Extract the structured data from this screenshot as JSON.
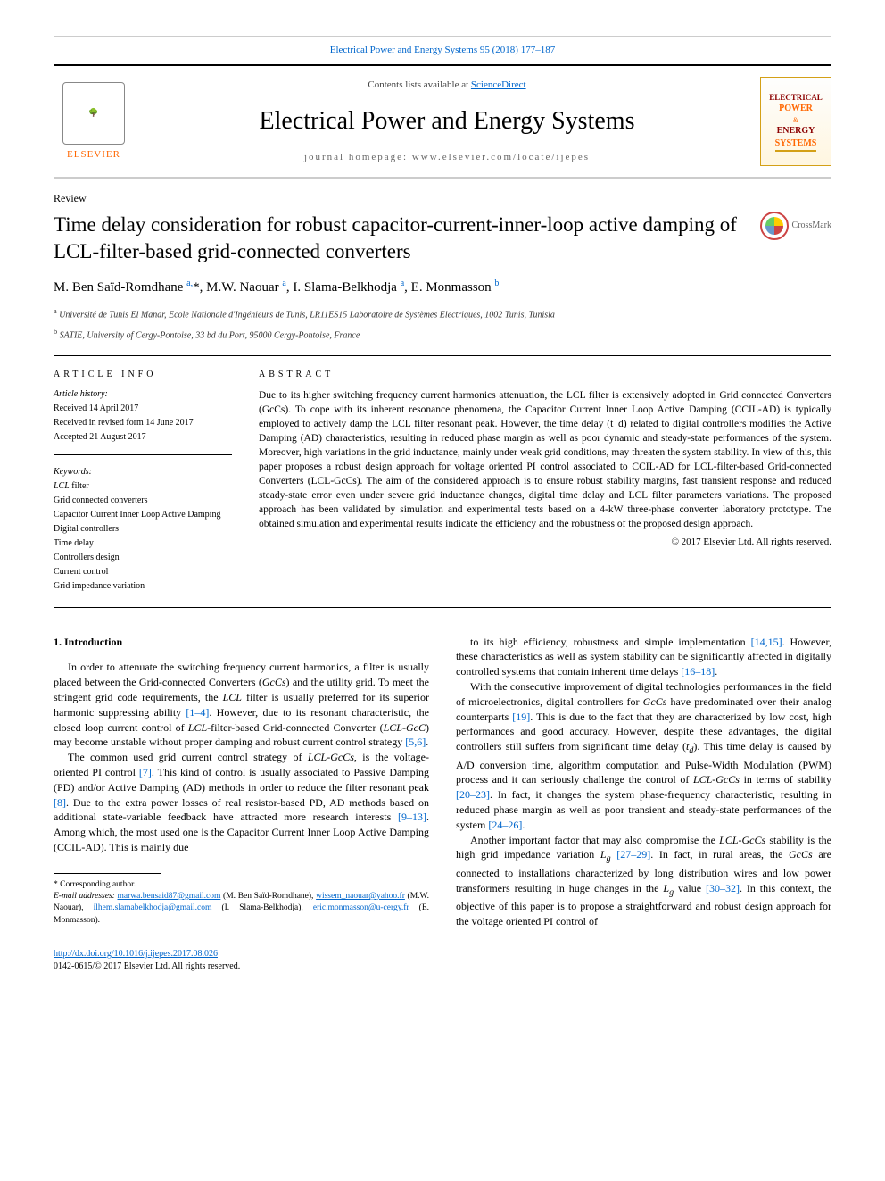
{
  "citation": "Electrical Power and Energy Systems 95 (2018) 177–187",
  "masthead": {
    "publisher_label": "ELSEVIER",
    "contents_prefix": "Contents lists available at ",
    "contents_link": "ScienceDirect",
    "journal_title": "Electrical Power and Energy Systems",
    "homepage_prefix": "journal homepage: ",
    "homepage_url": "www.elsevier.com/locate/ijepes",
    "cover_lines": [
      "INTERNATIONAL JOURNAL OF",
      "ELECTRICAL",
      "POWER",
      "&",
      "ENERGY",
      "SYSTEMS"
    ]
  },
  "article_type": "Review",
  "title": "Time delay consideration for robust capacitor-current-inner-loop active damping of LCL-filter-based grid-connected converters",
  "crossmark_label": "CrossMark",
  "authors_html": "M. Ben Saïd-Romdhane <sup>a,</sup>*, M.W. Naouar <sup>a</sup>, I. Slama-Belkhodja <sup>a</sup>, E. Monmasson <sup>b</sup>",
  "affiliations": [
    {
      "sup": "a",
      "text": "Université de Tunis El Manar, Ecole Nationale d'Ingénieurs de Tunis, LR11ES15 Laboratoire de Systèmes Electriques, 1002 Tunis, Tunisia"
    },
    {
      "sup": "b",
      "text": "SATIE, University of Cergy-Pontoise, 33 bd du Port, 95000 Cergy-Pontoise, France"
    }
  ],
  "info": {
    "heading": "ARTICLE INFO",
    "history_label": "Article history:",
    "history": [
      "Received 14 April 2017",
      "Received in revised form 14 June 2017",
      "Accepted 21 August 2017"
    ],
    "keywords_label": "Keywords:",
    "keywords": [
      "LCL filter",
      "Grid connected converters",
      "Capacitor Current Inner Loop Active Damping",
      "Digital controllers",
      "Time delay",
      "Controllers design",
      "Current control",
      "Grid impedance variation"
    ]
  },
  "abstract": {
    "heading": "ABSTRACT",
    "text": "Due to its higher switching frequency current harmonics attenuation, the LCL filter is extensively adopted in Grid connected Converters (GcCs). To cope with its inherent resonance phenomena, the Capacitor Current Inner Loop Active Damping (CCIL-AD) is typically employed to actively damp the LCL filter resonant peak. However, the time delay (t_d) related to digital controllers modifies the Active Damping (AD) characteristics, resulting in reduced phase margin as well as poor dynamic and steady-state performances of the system. Moreover, high variations in the grid inductance, mainly under weak grid conditions, may threaten the system stability. In view of this, this paper proposes a robust design approach for voltage oriented PI control associated to CCIL-AD for LCL-filter-based Grid-connected Converters (LCL-GcCs). The aim of the considered approach is to ensure robust stability margins, fast transient response and reduced steady-state error even under severe grid inductance changes, digital time delay and LCL filter parameters variations. The proposed approach has been validated by simulation and experimental tests based on a 4-kW three-phase converter laboratory prototype. The obtained simulation and experimental results indicate the efficiency and the robustness of the proposed design approach.",
    "copyright": "© 2017 Elsevier Ltd. All rights reserved."
  },
  "section1_heading": "1. Introduction",
  "col1_paras": [
    "In order to attenuate the switching frequency current harmonics, a filter is usually placed between the Grid-connected Converters (GcCs) and the utility grid. To meet the stringent grid code requirements, the LCL filter is usually preferred for its superior harmonic suppressing ability [1–4]. However, due to its resonant characteristic, the closed loop current control of LCL-filter-based Grid-connected Converter (LCL-GcC) may become unstable without proper damping and robust current control strategy [5,6].",
    "The common used grid current control strategy of LCL-GcCs, is the voltage-oriented PI control [7]. This kind of control is usually associated to Passive Damping (PD) and/or Active Damping (AD) methods in order to reduce the filter resonant peak [8]. Due to the extra power losses of real resistor-based PD, AD methods based on additional state-variable feedback have attracted more research interests [9–13]. Among which, the most used one is the Capacitor Current Inner Loop Active Damping (CCIL-AD). This is mainly due"
  ],
  "col1_refs": {
    "r1": "[1–4]",
    "r2": "[5,6]",
    "r3": "[7]",
    "r4": "[8]",
    "r5": "[9–13]"
  },
  "col2_paras": [
    "to its high efficiency, robustness and simple implementation [14,15]. However, these characteristics as well as system stability can be significantly affected in digitally controlled systems that contain inherent time delays [16–18].",
    "With the consecutive improvement of digital technologies performances in the field of microelectronics, digital controllers for GcCs have predominated over their analog counterparts [19]. This is due to the fact that they are characterized by low cost, high performances and good accuracy. However, despite these advantages, the digital controllers still suffers from significant time delay (t_d). This time delay is caused by A/D conversion time, algorithm computation and Pulse-Width Modulation (PWM) process and it can seriously challenge the control of LCL-GcCs in terms of stability [20–23]. In fact, it changes the system phase-frequency characteristic, resulting in reduced phase margin as well as poor transient and steady-state performances of the system [24–26].",
    "Another important factor that may also compromise the LCL-GcCs stability is the high grid impedance variation L_g [27–29]. In fact, in rural areas, the GcCs are connected to installations characterized by long distribution wires and low power transformers resulting in huge changes in the L_g value [30–32]. In this context, the objective of this paper is to propose a straightforward and robust design approach for the voltage oriented PI control of"
  ],
  "col2_refs": {
    "r1": "[14,15]",
    "r2": "[16–18]",
    "r3": "[19]",
    "r4": "[20–23]",
    "r5": "[24–26]",
    "r6": "[27–29]",
    "r7": "[30–32]"
  },
  "footnote": {
    "corresponding": "* Corresponding author.",
    "emails_label": "E-mail addresses: ",
    "emails": [
      {
        "email": "marwa.bensaid87@gmail.com",
        "name": "(M. Ben Saïd-Romdhane)"
      },
      {
        "email": "wissem_naouar@yahoo.fr",
        "name": "(M.W. Naouar)"
      },
      {
        "email": "ilhem.slamabelkhodja@gmail.com",
        "name": "(I. Slama-Belkhodja)"
      },
      {
        "email": "eric.monmasson@u-cergy.fr",
        "name": "(E. Monmasson)."
      }
    ]
  },
  "bottom": {
    "doi": "http://dx.doi.org/10.1016/j.ijepes.2017.08.026",
    "issn_line": "0142-0615/© 2017 Elsevier Ltd. All rights reserved."
  },
  "colors": {
    "link": "#0066cc",
    "elsevier_orange": "#ff6600",
    "rule": "#000000"
  }
}
